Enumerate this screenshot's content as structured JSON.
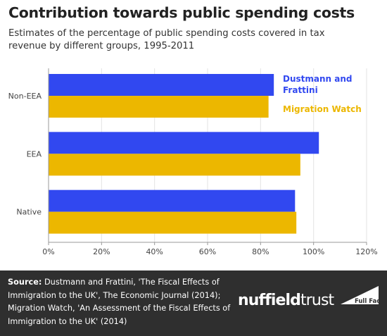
{
  "chart_data": {
    "type": "bar",
    "orientation": "horizontal",
    "title": "Contribution towards public spending costs",
    "subtitle": "Estimates of the percentage of public spending costs covered in tax revenue by different groups, 1995-2011",
    "categories": [
      "Non-EEA",
      "EEA",
      "Native"
    ],
    "series": [
      {
        "name": "Dustmann and Frattini",
        "color": "#3148f0",
        "values": [
          85,
          102,
          93
        ]
      },
      {
        "name": "Migration Watch",
        "color": "#ecb700",
        "values": [
          83,
          95,
          93.5
        ]
      }
    ],
    "xlim": [
      0,
      120
    ],
    "xticks": [
      0,
      20,
      40,
      60,
      80,
      100,
      120
    ],
    "tick_format": "%",
    "grid": true,
    "legend_placement": "top-right, inline beside the Non-EEA bars",
    "xlabel": "",
    "ylabel": ""
  },
  "footer": {
    "source_label": "Source:",
    "source_text": " Dustmann and Frattini, 'The Fiscal Effects of Immigration to the UK', The Economic Journal (2014); Migration Watch, 'An Assessment of the Fiscal Effects of Immigration to the UK' (2014)",
    "brand_bold": "nuffield",
    "brand_regular": "trust",
    "logo_text": "Full Fact",
    "background": "#2f2f2f"
  }
}
